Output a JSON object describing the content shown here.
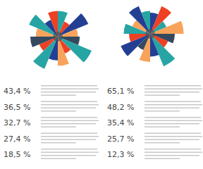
{
  "chart_data": [
    {
      "type": "polar_area",
      "values": [
        70,
        45,
        90,
        55,
        60,
        100,
        50,
        80,
        65,
        95,
        55,
        75,
        60,
        85,
        50,
        70
      ],
      "colors": [
        "#26a5a4",
        "#ee4023",
        "#233f94",
        "#f7a35c",
        "#34495e",
        "#26a5a4",
        "#ee4023",
        "#f7a35c",
        "#233f94",
        "#26a5a4",
        "#ee4023",
        "#34495e",
        "#f7a35c",
        "#26a5a4",
        "#233f94",
        "#ee4023"
      ],
      "ylim": [
        0,
        100
      ]
    },
    {
      "type": "polar_area",
      "values": [
        60,
        85,
        50,
        95,
        70,
        55,
        100,
        65,
        80,
        50,
        90,
        60,
        75,
        55,
        85,
        65
      ],
      "colors": [
        "#233f94",
        "#ee4023",
        "#26a5a4",
        "#f7a35c",
        "#34495e",
        "#ee4023",
        "#26a5a4",
        "#233f94",
        "#f7a35c",
        "#34495e",
        "#233f94",
        "#ee4023",
        "#26a5a4",
        "#f7a35c",
        "#233f94",
        "#26a5a4"
      ],
      "ylim": [
        0,
        100
      ]
    }
  ],
  "stats": [
    [
      {
        "value": 43.4,
        "label": "43,4 %"
      },
      {
        "value": 36.5,
        "label": "36,5 %"
      },
      {
        "value": 32.7,
        "label": "32,7 %"
      },
      {
        "value": 27.4,
        "label": "27,4 %"
      },
      {
        "value": 18.5,
        "label": "18,5 %"
      }
    ],
    [
      {
        "value": 65.1,
        "label": "65,1 %"
      },
      {
        "value": 48.2,
        "label": "48,2 %"
      },
      {
        "value": 35.4,
        "label": "35,4 %"
      },
      {
        "value": 25.7,
        "label": "25,7 %"
      },
      {
        "value": 12.3,
        "label": "12,3 %"
      }
    ]
  ]
}
